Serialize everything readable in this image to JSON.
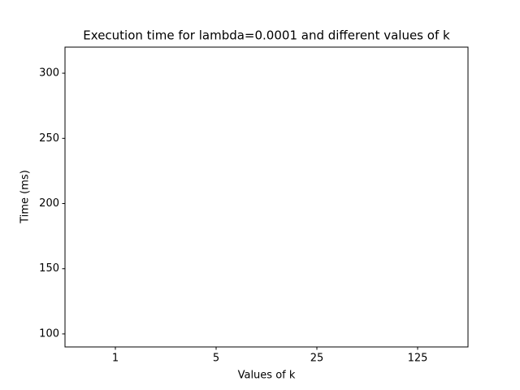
{
  "chart_data": {
    "type": "bar",
    "title": "Execution time for lambda=0.0001 and different values of k",
    "x_label": "Values of k",
    "y_label": "Time (ms)",
    "categories": [
      "1",
      "5",
      "25",
      "125"
    ],
    "ylim": [
      90,
      320
    ],
    "yticks": [
      100,
      150,
      200,
      250,
      300
    ],
    "grid": false
  }
}
